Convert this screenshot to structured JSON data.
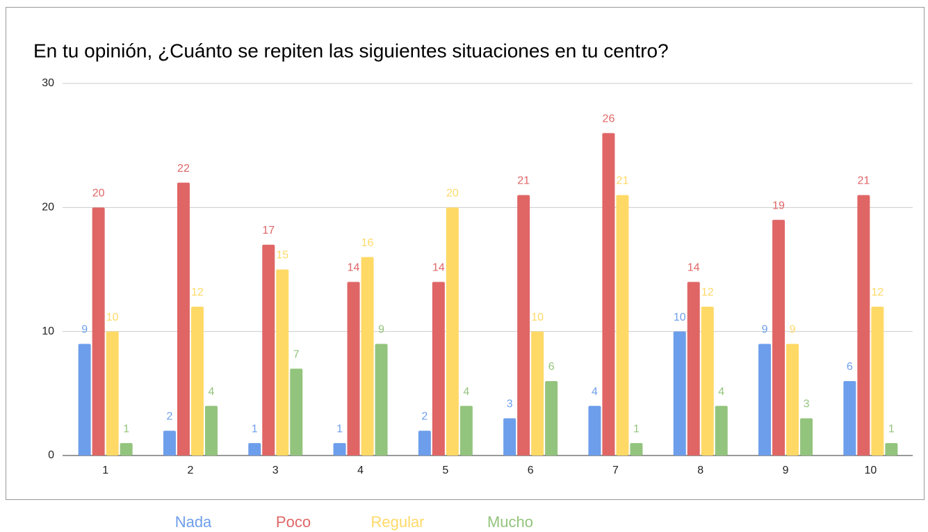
{
  "chart_data": {
    "type": "bar",
    "title": "En tu opinión, ¿Cuánto se repiten las siguientes situaciones en tu centro?",
    "categories": [
      "1",
      "2",
      "3",
      "4",
      "5",
      "6",
      "7",
      "8",
      "9",
      "10"
    ],
    "series": [
      {
        "name": "Nada",
        "color": "#6d9eeb",
        "values": [
          9,
          2,
          1,
          1,
          2,
          3,
          4,
          10,
          9,
          6
        ]
      },
      {
        "name": "Poco",
        "color": "#e06666",
        "values": [
          20,
          22,
          17,
          14,
          14,
          21,
          26,
          14,
          19,
          21
        ]
      },
      {
        "name": "Regular",
        "color": "#ffd966",
        "values": [
          10,
          12,
          15,
          16,
          20,
          10,
          21,
          12,
          9,
          12
        ]
      },
      {
        "name": "Mucho",
        "color": "#93c47d",
        "values": [
          1,
          4,
          7,
          9,
          4,
          6,
          1,
          4,
          3,
          1
        ]
      }
    ],
    "ylim": [
      0,
      30
    ],
    "yticks": [
      0,
      10,
      20,
      30
    ],
    "grid": true,
    "legend": "bottom"
  }
}
